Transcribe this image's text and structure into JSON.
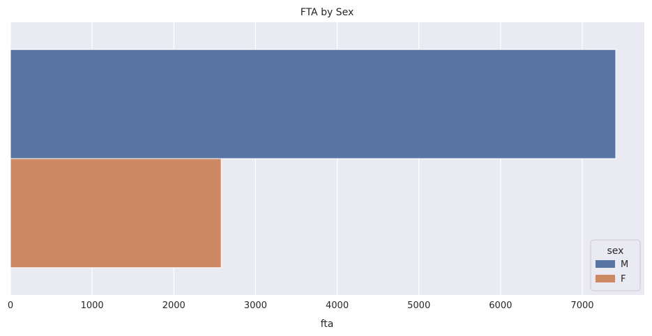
{
  "chart_data": {
    "type": "bar",
    "orientation": "horizontal",
    "title": "FTA by Sex",
    "xlabel": "fta",
    "ylabel": "",
    "xlim": [
      0,
      7760
    ],
    "xticks": [
      0,
      1000,
      2000,
      3000,
      4000,
      5000,
      6000,
      7000
    ],
    "grid": true,
    "legend": {
      "title": "sex",
      "placement": "bottom-right"
    },
    "series": [
      {
        "name": "M",
        "value": 7410,
        "color": "#5975a4"
      },
      {
        "name": "F",
        "value": 2580,
        "color": "#cc8963"
      }
    ],
    "colors": {
      "background": "#eaeaf2",
      "grid": "#ffffff"
    }
  }
}
